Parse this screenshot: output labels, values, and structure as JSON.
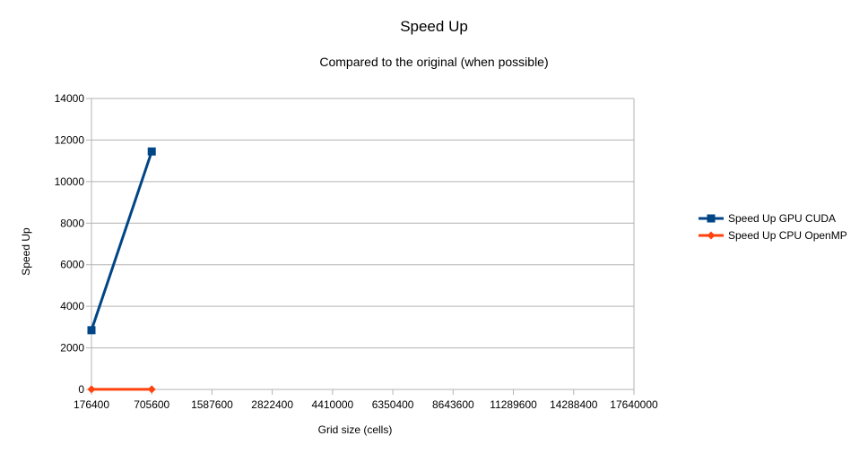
{
  "chart_data": {
    "type": "line",
    "title": "Speed Up",
    "subtitle": "Compared to the original (when possible)",
    "xlabel": "Grid size (cells)",
    "ylabel": "Speed Up",
    "categories": [
      "176400",
      "705600",
      "1587600",
      "2822400",
      "4410000",
      "6350400",
      "8643600",
      "11289600",
      "14288400",
      "17640000"
    ],
    "ylim": [
      0,
      14000
    ],
    "yticks": [
      0,
      2000,
      4000,
      6000,
      8000,
      10000,
      12000,
      14000
    ],
    "grid": true,
    "legend_position": "right",
    "series": [
      {
        "name": "Speed Up GPU CUDA",
        "color": "#004586",
        "marker": "square",
        "values": [
          2850,
          11450,
          null,
          null,
          null,
          null,
          null,
          null,
          null,
          null
        ]
      },
      {
        "name": "Speed Up CPU OpenMP",
        "color": "#ff420e",
        "marker": "diamond",
        "values": [
          5,
          5,
          null,
          null,
          null,
          null,
          null,
          null,
          null,
          null
        ]
      }
    ]
  }
}
